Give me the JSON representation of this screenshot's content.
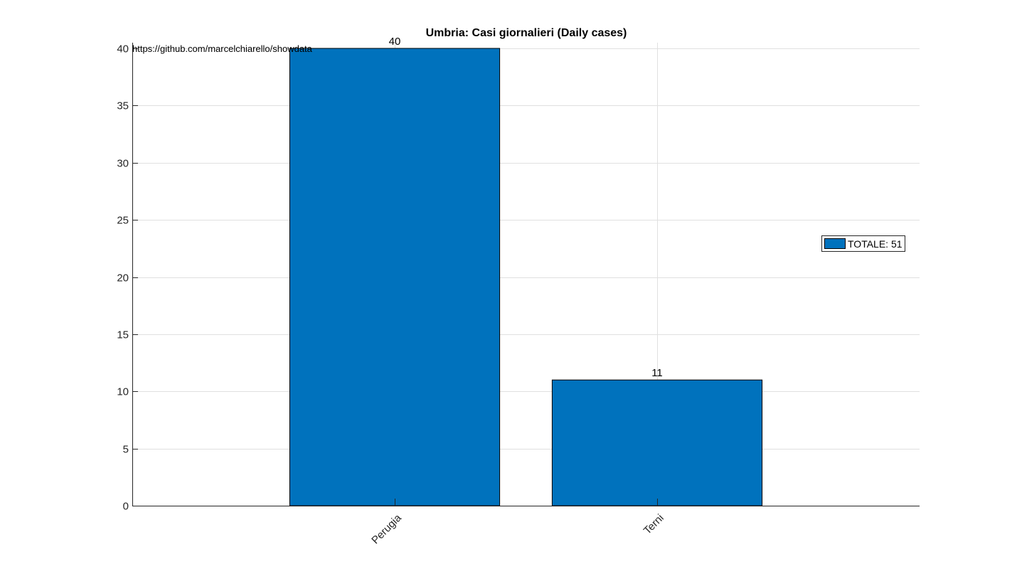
{
  "chart_data": {
    "type": "bar",
    "title": "Umbria: Casi giornalieri (Daily cases)",
    "source_note": "https://github.com/marcelchiarello/showdata",
    "categories": [
      "Perugia",
      "Terni"
    ],
    "values": [
      40,
      11
    ],
    "data_labels": [
      "40",
      "11"
    ],
    "x_positions": [
      1,
      2
    ],
    "xlim": [
      0,
      3
    ],
    "ylim": [
      0,
      40.5
    ],
    "yticks": [
      0,
      5,
      10,
      15,
      20,
      25,
      30,
      35,
      40
    ],
    "ytick_labels": [
      "0",
      "5",
      "10",
      "15",
      "20",
      "25",
      "30",
      "35",
      "40"
    ],
    "xlabel": "",
    "ylabel": "",
    "grid": true,
    "legend": {
      "label": "TOTALE: 51",
      "placement": "right"
    },
    "colors": {
      "bar": "#0072BD",
      "bar_edge": "#000000",
      "grid": "#e0e0e0",
      "axis": "#262626"
    }
  }
}
